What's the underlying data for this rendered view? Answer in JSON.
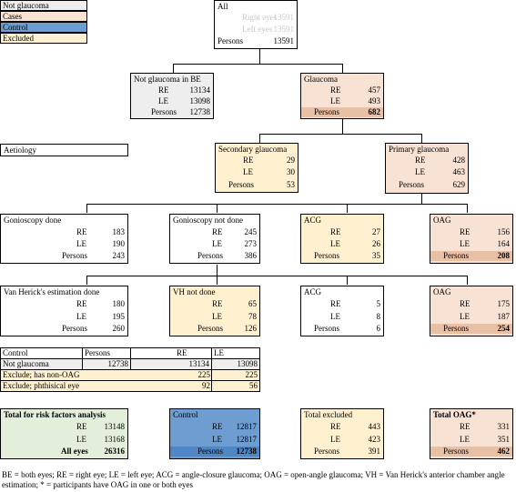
{
  "colors": {
    "grey": "#eeeeee",
    "pink": "#f8e2d4",
    "blue": "#6d9dd1",
    "yellow": "#fff1cf",
    "green": "#e3efda",
    "white": "#ffffff"
  },
  "legend": [
    {
      "label": "Not glaucoma",
      "color": "#eeeeee"
    },
    {
      "label": "Cases",
      "color": "#f8e2d4"
    },
    {
      "label": "Control",
      "color": "#6d9dd1"
    },
    {
      "label": "Excluded",
      "color": "#fff1cf"
    }
  ],
  "all": {
    "title": "All",
    "rows": [
      [
        "Right eyes",
        "13591"
      ],
      [
        "Left eyes",
        "13591"
      ],
      [
        "Persons",
        "13591"
      ]
    ]
  },
  "not_glaucoma_be": {
    "title": "Not glaucoma in BE",
    "rows": [
      [
        "RE",
        "13134"
      ],
      [
        "LE",
        "13098"
      ],
      [
        "Persons",
        "12738"
      ]
    ]
  },
  "glaucoma": {
    "title": "Glaucoma",
    "rows": [
      [
        "RE",
        "457"
      ],
      [
        "LE",
        "493"
      ],
      [
        "Persons",
        "682"
      ]
    ]
  },
  "aetiology": {
    "title": "Aetiology"
  },
  "secondary": {
    "title": "Secondary glaucoma",
    "rows": [
      [
        "RE",
        "29"
      ],
      [
        "LE",
        "30"
      ],
      [
        "Persons",
        "53"
      ]
    ]
  },
  "primary": {
    "title": "Primary glaucoma",
    "rows": [
      [
        "RE",
        "428"
      ],
      [
        "LE",
        "463"
      ],
      [
        "Persons",
        "629"
      ]
    ]
  },
  "gonio_done": {
    "title": "Gonioscopy done",
    "rows": [
      [
        "RE",
        "183"
      ],
      [
        "LE",
        "190"
      ],
      [
        "Persons",
        "243"
      ]
    ]
  },
  "gonio_not": {
    "title": "Gonioscopy not done",
    "rows": [
      [
        "RE",
        "245"
      ],
      [
        "LE",
        "273"
      ],
      [
        "Persons",
        "386"
      ]
    ]
  },
  "acg1": {
    "title": "ACG",
    "rows": [
      [
        "RE",
        "27"
      ],
      [
        "LE",
        "26"
      ],
      [
        "Persons",
        "35"
      ]
    ]
  },
  "oag1": {
    "title": "OAG",
    "rows": [
      [
        "RE",
        "156"
      ],
      [
        "LE",
        "164"
      ],
      [
        "Persons",
        "208"
      ]
    ]
  },
  "vh_done": {
    "title": "Van Herick's estimation done",
    "rows": [
      [
        "RE",
        "180"
      ],
      [
        "LE",
        "195"
      ],
      [
        "Persons",
        "260"
      ]
    ]
  },
  "vh_not": {
    "title": "VH not done",
    "rows": [
      [
        "RE",
        "65"
      ],
      [
        "LE",
        "78"
      ],
      [
        "Persons",
        "126"
      ]
    ]
  },
  "acg2": {
    "title": "ACG",
    "rows": [
      [
        "RE",
        "5"
      ],
      [
        "LE",
        "8"
      ],
      [
        "Persons",
        "6"
      ]
    ]
  },
  "oag2": {
    "title": "OAG",
    "rows": [
      [
        "RE",
        "175"
      ],
      [
        "LE",
        "187"
      ],
      [
        "Persons",
        "254"
      ]
    ]
  },
  "control_table": {
    "headers": [
      "Control",
      "Persons",
      "RE",
      "LE"
    ],
    "rows": [
      [
        "Not glaucoma",
        "12738",
        "13134",
        "13098"
      ],
      [
        "Exclude; has non-OAG",
        "",
        "225",
        "225"
      ],
      [
        "Exclude; phthisical eye",
        "",
        "92",
        "56"
      ]
    ]
  },
  "total_risk": {
    "title": "Total for risk factors analysis",
    "rows": [
      [
        "RE",
        "13148"
      ],
      [
        "LE",
        "13168"
      ],
      [
        "All eyes",
        "26316"
      ]
    ]
  },
  "control": {
    "title": "Control",
    "rows": [
      [
        "RE",
        "12817"
      ],
      [
        "LE",
        "12817"
      ],
      [
        "Persons",
        "12738"
      ]
    ]
  },
  "total_excluded": {
    "title": "Total excluded",
    "rows": [
      [
        "RE",
        "443"
      ],
      [
        "LE",
        "423"
      ],
      [
        "Persons",
        "391"
      ]
    ]
  },
  "total_oag": {
    "title": "Total OAG*",
    "rows": [
      [
        "RE",
        "331"
      ],
      [
        "LE",
        "351"
      ],
      [
        "Persons",
        "462"
      ]
    ]
  },
  "footnote": "BE = both eyes; RE = right eye; LE = left eye; ACG = angle-closure glaucoma; OAG = open-angle glaucoma; VH = Van Herick's anterior chamber angle estimation; * = participants have OAG in one or both eyes"
}
